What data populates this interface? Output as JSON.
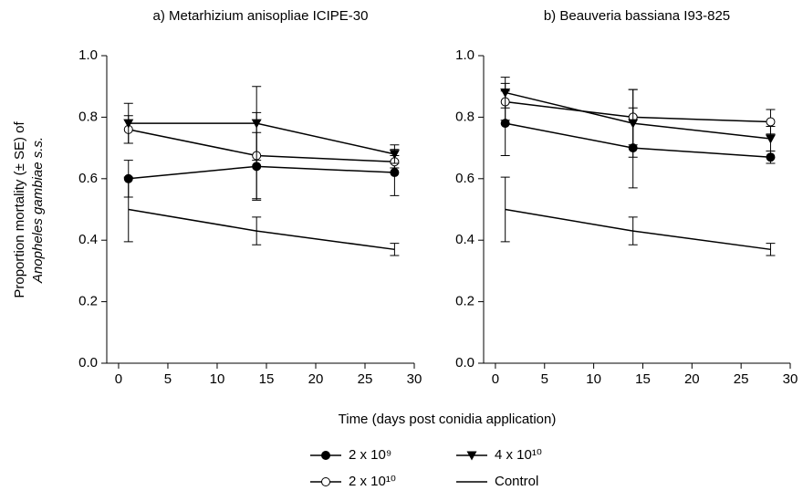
{
  "x_label": "Time (days post conidia application)",
  "y_label": [
    "Proportion mortality (± SE) of",
    "Anopheles gambiae s.s."
  ],
  "chart_data": [
    {
      "type": "line",
      "title": "a) Metarhizium anisopliae ICIPE-30",
      "x": [
        1,
        14,
        28
      ],
      "xlim": [
        -1.2,
        30
      ],
      "xticks": [
        0,
        5,
        10,
        15,
        20,
        25,
        30
      ],
      "ylim": [
        0,
        1
      ],
      "yticks": [
        {
          "value": 0,
          "label": "0.0"
        },
        0.2,
        0.4,
        0.6,
        0.8,
        {
          "value": 1,
          "label": "1.0"
        }
      ],
      "series": [
        {
          "name": "2 x 10⁹",
          "color": "#000000",
          "marker": "filled-circle",
          "values": [
            0.6,
            0.64,
            0.62
          ],
          "errors": [
            0.06,
            0.11,
            0.075
          ]
        },
        {
          "name": "2 x 10¹⁰",
          "color": "#000000",
          "marker": "open-circle",
          "values": [
            0.76,
            0.675,
            0.655
          ],
          "errors": [
            0.045,
            0.14,
            0.02
          ]
        },
        {
          "name": "4 x 10¹⁰",
          "color": "#000000",
          "marker": "triangle-down",
          "values": [
            0.78,
            0.78,
            0.68
          ],
          "errors": [
            0.065,
            0.12,
            0.03
          ]
        },
        {
          "name": "Control",
          "color": "#000000",
          "marker": "none",
          "values": [
            0.5,
            0.43,
            0.37
          ],
          "errors": [
            0.105,
            0.045,
            0.02
          ]
        }
      ]
    },
    {
      "type": "line",
      "title": "b) Beauveria bassiana I93-825",
      "x": [
        1,
        14,
        28
      ],
      "xlim": [
        -1.2,
        30
      ],
      "xticks": [
        0,
        5,
        10,
        15,
        20,
        25,
        30
      ],
      "ylim": [
        0,
        1
      ],
      "yticks": [
        {
          "value": 0,
          "label": "0.0"
        },
        0.2,
        0.4,
        0.6,
        0.8,
        {
          "value": 1,
          "label": "1.0"
        }
      ],
      "series": [
        {
          "color": "#000000",
          "marker": "filled-circle",
          "values": [
            0.78,
            0.7,
            0.67
          ],
          "errors": [
            0.105,
            0.13,
            0.02
          ]
        },
        {
          "color": "#000000",
          "marker": "open-circle",
          "values": [
            0.85,
            0.8,
            0.785
          ],
          "errors": [
            0.06,
            0.09,
            0.04
          ]
        },
        {
          "color": "#000000",
          "marker": "triangle-down",
          "values": [
            0.88,
            0.78,
            0.73
          ],
          "errors": [
            0.05,
            0.11,
            0.04
          ]
        },
        {
          "color": "#000000",
          "marker": "none",
          "values": [
            0.5,
            0.43,
            0.37
          ],
          "errors": [
            0.105,
            0.045,
            0.02
          ]
        }
      ]
    }
  ]
}
